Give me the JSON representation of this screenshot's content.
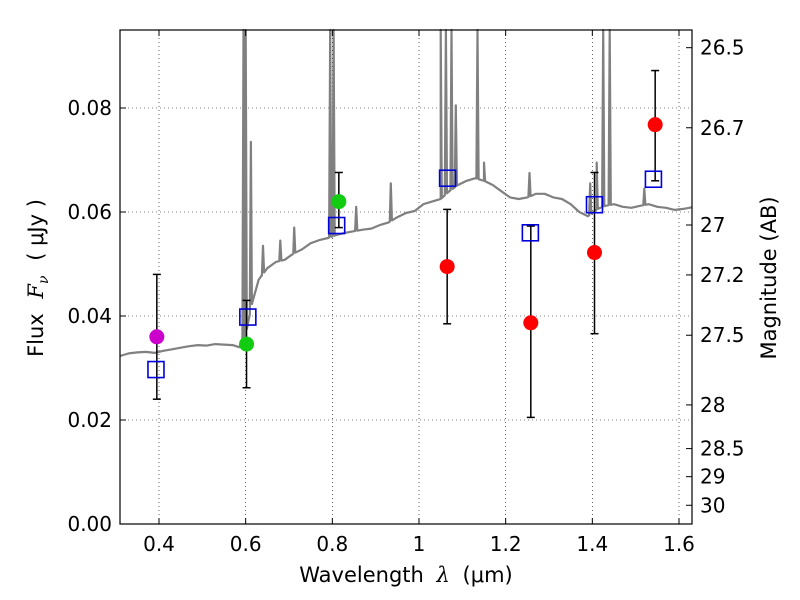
{
  "chart_data": {
    "type": "scatter",
    "xlabel_prefix": "Wavelength",
    "xlabel_symbol": "λ",
    "xlabel_unit": "(μm)",
    "ylabel_left_prefix": "Flux",
    "ylabel_left_symbol": "F",
    "ylabel_left_subscript": "ν",
    "ylabel_left_unit": "( μJy )",
    "ylabel_right": "Magnitude (AB)",
    "xlim": [
      0.31,
      1.63
    ],
    "ylim": [
      0.0,
      0.095
    ],
    "grid": true,
    "x_ticks": [
      {
        "value": 0.4,
        "label": "0.4"
      },
      {
        "value": 0.6,
        "label": "0.6"
      },
      {
        "value": 0.8,
        "label": "0.8"
      },
      {
        "value": 1.0,
        "label": "1"
      },
      {
        "value": 1.2,
        "label": "1.2"
      },
      {
        "value": 1.4,
        "label": "1.4"
      },
      {
        "value": 1.6,
        "label": "1.6"
      }
    ],
    "y_ticks": [
      {
        "value": 0.0,
        "label": "0.00"
      },
      {
        "value": 0.02,
        "label": "0.02"
      },
      {
        "value": 0.04,
        "label": "0.04"
      },
      {
        "value": 0.06,
        "label": "0.06"
      },
      {
        "value": 0.08,
        "label": "0.08"
      }
    ],
    "right_ticks": [
      {
        "flux": 0.0916,
        "label": "26.5"
      },
      {
        "flux": 0.0762,
        "label": "26.7"
      },
      {
        "flux": 0.0575,
        "label": "27"
      },
      {
        "flux": 0.0479,
        "label": "27.2"
      },
      {
        "flux": 0.0363,
        "label": "27.5"
      },
      {
        "flux": 0.0229,
        "label": "28"
      },
      {
        "flux": 0.0145,
        "label": "28.5"
      },
      {
        "flux": 0.0091,
        "label": "29"
      },
      {
        "flux": 0.0036,
        "label": "30"
      }
    ],
    "observed_points": [
      {
        "x": 0.395,
        "y": 0.036,
        "err_low": 0.024,
        "err_high": 0.048,
        "color": "#cc00cc"
      },
      {
        "x": 0.602,
        "y": 0.0346,
        "err_low": 0.0262,
        "err_high": 0.043,
        "color": "#11cc11"
      },
      {
        "x": 0.815,
        "y": 0.062,
        "err_low": 0.057,
        "err_high": 0.0676,
        "color": "#11cc11"
      },
      {
        "x": 1.065,
        "y": 0.0495,
        "err_low": 0.0385,
        "err_high": 0.0605,
        "color": "#ff0000"
      },
      {
        "x": 1.258,
        "y": 0.0387,
        "err_low": 0.0205,
        "err_high": 0.0573,
        "color": "#ff0000"
      },
      {
        "x": 1.405,
        "y": 0.0522,
        "err_low": 0.0366,
        "err_high": 0.0676,
        "color": "#ff0000"
      },
      {
        "x": 1.545,
        "y": 0.0768,
        "err_low": 0.066,
        "err_high": 0.0872,
        "color": "#ff0000"
      }
    ],
    "model_points": [
      {
        "x": 0.393,
        "y": 0.0297
      },
      {
        "x": 0.605,
        "y": 0.0398
      },
      {
        "x": 0.81,
        "y": 0.0574
      },
      {
        "x": 1.066,
        "y": 0.0665
      },
      {
        "x": 1.257,
        "y": 0.056
      },
      {
        "x": 1.405,
        "y": 0.0614
      },
      {
        "x": 1.541,
        "y": 0.0663
      }
    ],
    "spectrum": {
      "color": "#808080",
      "continuum": [
        [
          0.31,
          0.0323
        ],
        [
          0.33,
          0.0328
        ],
        [
          0.35,
          0.033
        ],
        [
          0.37,
          0.0331
        ],
        [
          0.39,
          0.0329
        ],
        [
          0.41,
          0.0333
        ],
        [
          0.43,
          0.0336
        ],
        [
          0.45,
          0.0339
        ],
        [
          0.47,
          0.0342
        ],
        [
          0.49,
          0.0344
        ],
        [
          0.51,
          0.0343
        ],
        [
          0.53,
          0.0346
        ],
        [
          0.55,
          0.0345
        ],
        [
          0.57,
          0.0344
        ],
        [
          0.585,
          0.034
        ],
        [
          0.6,
          0.0365
        ],
        [
          0.615,
          0.0425
        ],
        [
          0.63,
          0.047
        ],
        [
          0.65,
          0.0492
        ],
        [
          0.67,
          0.0504
        ],
        [
          0.69,
          0.0508
        ],
        [
          0.71,
          0.052
        ],
        [
          0.73,
          0.0528
        ],
        [
          0.75,
          0.054
        ],
        [
          0.77,
          0.0546
        ],
        [
          0.79,
          0.055
        ],
        [
          0.81,
          0.0556
        ],
        [
          0.83,
          0.056
        ],
        [
          0.85,
          0.0563
        ],
        [
          0.87,
          0.0566
        ],
        [
          0.89,
          0.0568
        ],
        [
          0.91,
          0.0575
        ],
        [
          0.93,
          0.058
        ],
        [
          0.95,
          0.059
        ],
        [
          0.97,
          0.0598
        ],
        [
          0.99,
          0.0602
        ],
        [
          1.01,
          0.0615
        ],
        [
          1.03,
          0.062
        ],
        [
          1.05,
          0.0625
        ],
        [
          1.07,
          0.064
        ],
        [
          1.09,
          0.0652
        ],
        [
          1.11,
          0.066
        ],
        [
          1.13,
          0.0665
        ],
        [
          1.15,
          0.066
        ],
        [
          1.17,
          0.0652
        ],
        [
          1.19,
          0.064
        ],
        [
          1.21,
          0.0628
        ],
        [
          1.23,
          0.0625
        ],
        [
          1.25,
          0.0628
        ],
        [
          1.27,
          0.0635
        ],
        [
          1.29,
          0.0635
        ],
        [
          1.31,
          0.0628
        ],
        [
          1.33,
          0.0625
        ],
        [
          1.35,
          0.0615
        ],
        [
          1.37,
          0.06
        ],
        [
          1.39,
          0.0592
        ],
        [
          1.41,
          0.0605
        ],
        [
          1.43,
          0.0612
        ],
        [
          1.45,
          0.0615
        ],
        [
          1.47,
          0.061
        ],
        [
          1.49,
          0.0608
        ],
        [
          1.51,
          0.0612
        ],
        [
          1.53,
          0.0615
        ],
        [
          1.55,
          0.061
        ],
        [
          1.57,
          0.0608
        ],
        [
          1.59,
          0.0604
        ],
        [
          1.61,
          0.0606
        ],
        [
          1.63,
          0.0609
        ]
      ],
      "lines": [
        [
          0.595,
          0.095
        ],
        [
          0.6,
          0.095
        ],
        [
          0.612,
          0.0735
        ],
        [
          0.64,
          0.0535
        ],
        [
          0.68,
          0.0545
        ],
        [
          0.712,
          0.057
        ],
        [
          0.795,
          0.095
        ],
        [
          0.803,
          0.095
        ],
        [
          0.855,
          0.061
        ],
        [
          0.935,
          0.0655
        ],
        [
          1.05,
          0.095
        ],
        [
          1.062,
          0.095
        ],
        [
          1.075,
          0.095
        ],
        [
          1.085,
          0.0805
        ],
        [
          1.135,
          0.095
        ],
        [
          1.15,
          0.0695
        ],
        [
          1.255,
          0.0675
        ],
        [
          1.395,
          0.0655
        ],
        [
          1.41,
          0.0695
        ],
        [
          1.425,
          0.095
        ],
        [
          1.44,
          0.095
        ],
        [
          1.52,
          0.0645
        ]
      ]
    }
  }
}
